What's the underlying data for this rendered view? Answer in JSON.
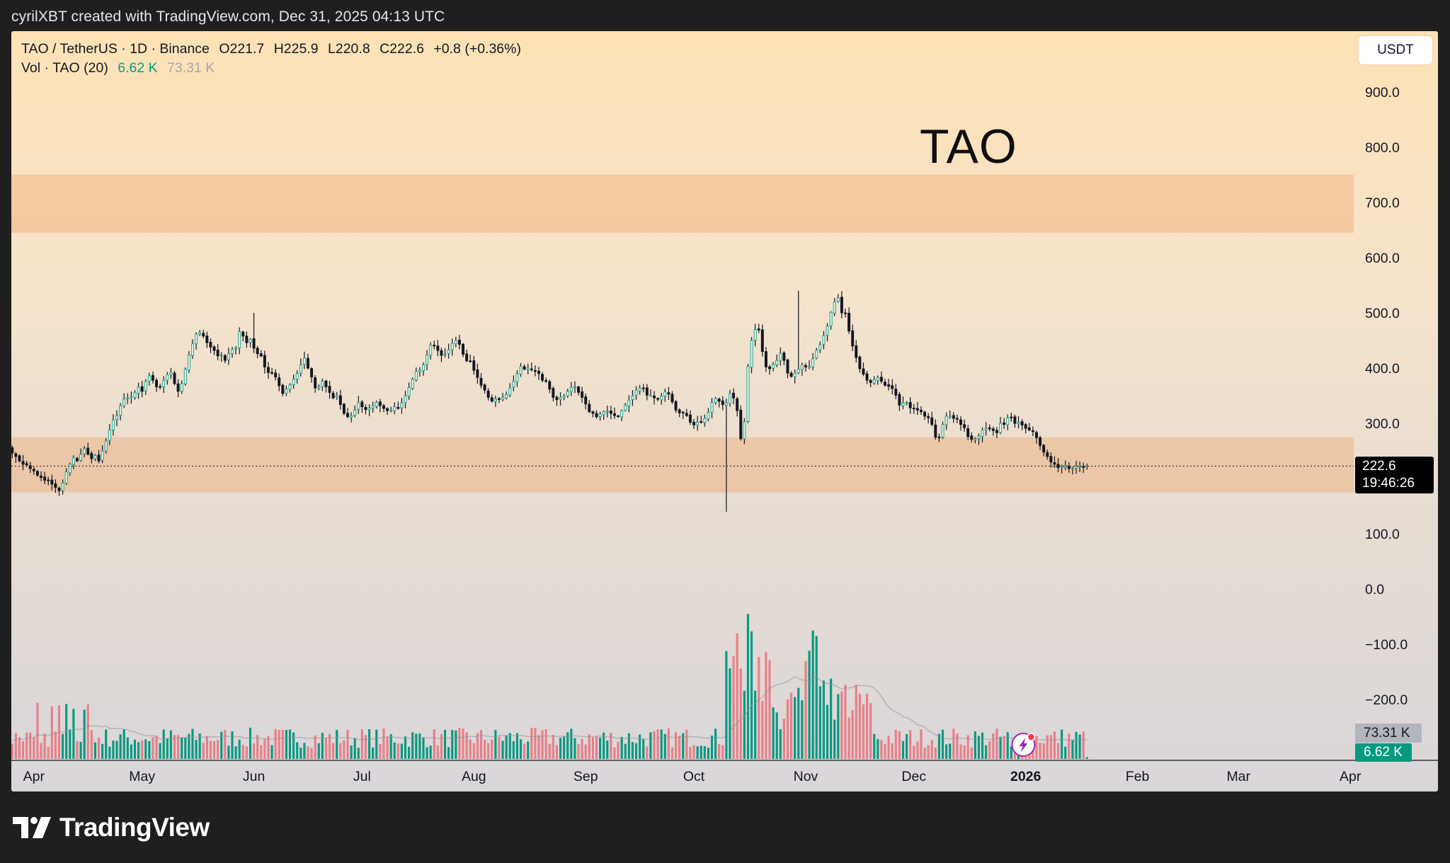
{
  "credit": "cyrilXBT created with TradingView.com, Dec 31, 2025 04:13 UTC",
  "legend": {
    "symbol": "TAO / TetherUS · 1D · Binance",
    "open": "O221.7",
    "high": "H225.9",
    "low": "L220.8",
    "close": "C222.6",
    "change": "+0.8 (+0.36%)",
    "volume_label": "Vol · TAO (20)",
    "volume_current": "6.62 K",
    "volume_ma": "73.31 K"
  },
  "currency": "USDT",
  "chart_label": "TAO",
  "price_tag": {
    "price": "222.6",
    "countdown": "19:46:26"
  },
  "volume_tags": {
    "ma": "73.31 K",
    "current": "6.62 K"
  },
  "brand": "TradingView",
  "colors": {
    "up": "#089981",
    "down": "#f23645",
    "zone": "#eea56a",
    "background_top": "#fde2b5",
    "background_bottom": "#d9d6da"
  },
  "icons": [
    "flash-alert-icon",
    "tradingview-logo-icon"
  ],
  "chart_data": {
    "type": "candlestick",
    "title": "",
    "interval": "1D",
    "y_ticks": [
      "900.0",
      "800.0",
      "700.0",
      "600.0",
      "500.0",
      "400.0",
      "300.0",
      "100.0",
      "0.0",
      "−100.0",
      "−200.0"
    ],
    "y_tick_values": [
      900,
      800,
      700,
      600,
      500,
      400,
      300,
      100,
      0,
      -100,
      -200
    ],
    "ylim": [
      -310,
      1010
    ],
    "x_ticks": [
      {
        "label": "Apr",
        "date": "2025-04-01",
        "bold": false
      },
      {
        "label": "May",
        "date": "2025-05-01",
        "bold": false
      },
      {
        "label": "Jun",
        "date": "2025-06-01",
        "bold": false
      },
      {
        "label": "Jul",
        "date": "2025-07-01",
        "bold": false
      },
      {
        "label": "Aug",
        "date": "2025-08-01",
        "bold": false
      },
      {
        "label": "Sep",
        "date": "2025-09-01",
        "bold": false
      },
      {
        "label": "Oct",
        "date": "2025-10-01",
        "bold": false
      },
      {
        "label": "Nov",
        "date": "2025-11-01",
        "bold": false
      },
      {
        "label": "Dec",
        "date": "2025-12-01",
        "bold": false
      },
      {
        "label": "2026",
        "date": "2026-01-01",
        "bold": true
      },
      {
        "label": "Feb",
        "date": "2026-02-01",
        "bold": false
      },
      {
        "label": "Mar",
        "date": "2026-03-01",
        "bold": false
      },
      {
        "label": "Apr",
        "date": "2026-04-01",
        "bold": false
      }
    ],
    "zones": [
      {
        "from": 645,
        "to": 750
      },
      {
        "from": 175,
        "to": 275
      }
    ],
    "last_price": 222.6,
    "ohlc": {
      "start_date": "2025-03-23",
      "day_step": 1,
      "closes": [
        268,
        271,
        255,
        246,
        240,
        232,
        226,
        225,
        218,
        214,
        206,
        202,
        197,
        196,
        190,
        184,
        178,
        192,
        212,
        226,
        238,
        232,
        244,
        254,
        244,
        236,
        242,
        232,
        250,
        268,
        288,
        306,
        314,
        332,
        344,
        346,
        348,
        356,
        366,
        358,
        376,
        386,
        378,
        366,
        366,
        378,
        388,
        392,
        372,
        358,
        372,
        398,
        424,
        444,
        462,
        464,
        458,
        446,
        438,
        432,
        422,
        424,
        414,
        426,
        434,
        436,
        466,
        458,
        446,
        452,
        436,
        426,
        422,
        402,
        392,
        392,
        384,
        368,
        354,
        362,
        370,
        380,
        390,
        406,
        418,
        400,
        384,
        364,
        366,
        376,
        366,
        356,
        346,
        350,
        334,
        318,
        312,
        314,
        324,
        338,
        330,
        325,
        328,
        332,
        338,
        332,
        327,
        323,
        324,
        330,
        327,
        337,
        350,
        365,
        380,
        394,
        396,
        406,
        424,
        442,
        440,
        432,
        423,
        425,
        433,
        445,
        450,
        443,
        425,
        413,
        412,
        396,
        383,
        369,
        360,
        347,
        340,
        344,
        343,
        347,
        352,
        364,
        376,
        390,
        403,
        398,
        400,
        397,
        394,
        390,
        378,
        377,
        362,
        347,
        343,
        347,
        350,
        358,
        365,
        366,
        356,
        347,
        335,
        321,
        318,
        312,
        317,
        321,
        322,
        318,
        314,
        313,
        323,
        333,
        342,
        350,
        360,
        364,
        364,
        351,
        351,
        346,
        344,
        349,
        357,
        353,
        339,
        324,
        319,
        319,
        314,
        302,
        297,
        302,
        302,
        309,
        320,
        338,
        345,
        340,
        334,
        337,
        354,
        346,
        323,
        272,
        303,
        403,
        450,
        470,
        469,
        430,
        402,
        399,
        407,
        414,
        427,
        414,
        391,
        385,
        391,
        398,
        406,
        402,
        403,
        417,
        432,
        442,
        459,
        476,
        501,
        520,
        527,
        500,
        499,
        467,
        440,
        419,
        399,
        389,
        378,
        374,
        379,
        383,
        376,
        369,
        367,
        363,
        351,
        333,
        337,
        338,
        328,
        327,
        324,
        321,
        313,
        310,
        298,
        275,
        275,
        298,
        313,
        313,
        309,
        308,
        298,
        292,
        276,
        271,
        272,
        277,
        288,
        291,
        290,
        287,
        283,
        300,
        298,
        310,
        311,
        300,
        302,
        297,
        291,
        288,
        285,
        274,
        260,
        248,
        240,
        230,
        226,
        220,
        222,
        223,
        218,
        219,
        222,
        223,
        221,
        222.6
      ]
    },
    "volume": {
      "max": 2000,
      "ma_period": 20,
      "ma_last": 73.31,
      "current": 6.62
    }
  }
}
